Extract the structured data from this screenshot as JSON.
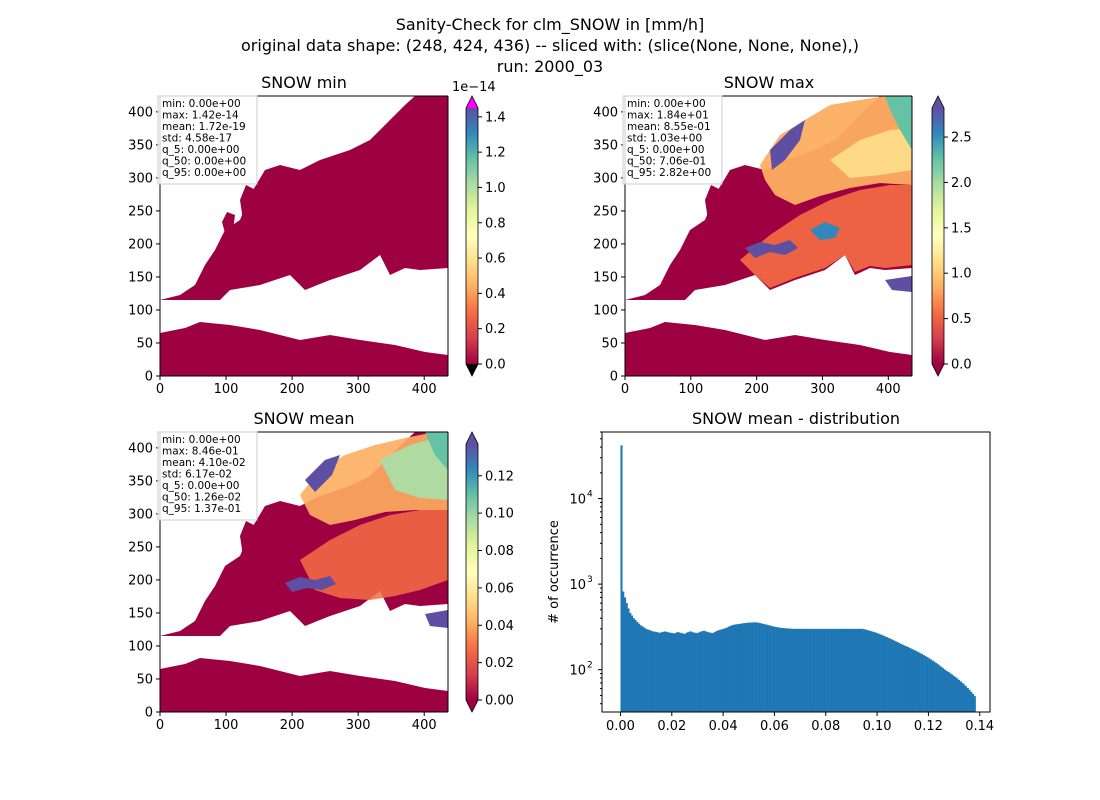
{
  "figure": {
    "title_lines": [
      "Sanity-Check for clm_SNOW in [mm/h]",
      "original data shape: (248, 424, 436) -- sliced with: (slice(None, None, None),)",
      "run: 2000_03"
    ]
  },
  "colors": {
    "map_low": "#9e0142",
    "histogram_bar": "#1f77b4",
    "over_color": "#ff00ff",
    "under_color": "#000000"
  },
  "chart_data": [
    {
      "type": "heatmap",
      "title": "SNOW min",
      "xlim": [
        0,
        436
      ],
      "ylim": [
        0,
        424
      ],
      "xticks": [
        0,
        100,
        200,
        300,
        400
      ],
      "yticks": [
        0,
        50,
        100,
        150,
        200,
        250,
        300,
        350,
        400
      ],
      "colorbar": {
        "cmap": "Spectral",
        "range": [
          0,
          1.45
        ],
        "ticks": [
          "0.0",
          "0.2",
          "0.4",
          "0.6",
          "0.8",
          "1.0",
          "1.2",
          "1.4"
        ],
        "offset_label": "1e−14",
        "extend": "both"
      },
      "stats": [
        "min: 0.00e+00",
        "max: 1.42e-14",
        "mean: 1.72e-19",
        "std: 4.58e-17",
        "q_5: 0.00e+00",
        "q_50: 0.00e+00",
        "q_95: 0.00e+00"
      ]
    },
    {
      "type": "heatmap",
      "title": "SNOW max",
      "xlim": [
        0,
        436
      ],
      "ylim": [
        0,
        424
      ],
      "xticks": [
        0,
        100,
        200,
        300,
        400
      ],
      "yticks": [
        0,
        50,
        100,
        150,
        200,
        250,
        300,
        350,
        400
      ],
      "colorbar": {
        "cmap": "Spectral",
        "range": [
          0,
          2.82
        ],
        "ticks": [
          "0.0",
          "0.5",
          "1.0",
          "1.5",
          "2.0",
          "2.5"
        ],
        "offset_label": "",
        "extend": "both"
      },
      "stats": [
        "min: 0.00e+00",
        "max: 1.84e+01",
        "mean: 8.55e-01",
        "std: 1.03e+00",
        "q_5: 0.00e+00",
        "q_50: 7.06e-01",
        "q_95: 2.82e+00"
      ]
    },
    {
      "type": "heatmap",
      "title": "SNOW mean",
      "xlim": [
        0,
        436
      ],
      "ylim": [
        0,
        424
      ],
      "xticks": [
        0,
        100,
        200,
        300,
        400
      ],
      "yticks": [
        0,
        50,
        100,
        150,
        200,
        250,
        300,
        350,
        400
      ],
      "colorbar": {
        "cmap": "Spectral",
        "range": [
          0,
          0.137
        ],
        "ticks": [
          "0.00",
          "0.02",
          "0.04",
          "0.06",
          "0.08",
          "0.10",
          "0.12"
        ],
        "offset_label": "",
        "extend": "both"
      },
      "stats": [
        "min: 0.00e+00",
        "max: 8.46e-01",
        "mean: 4.10e-02",
        "std: 6.17e-02",
        "q_5: 0.00e+00",
        "q_50: 1.26e-02",
        "q_95: 1.37e-01"
      ]
    },
    {
      "type": "bar",
      "title": "SNOW mean - distribution",
      "xlabel": "",
      "ylabel": "# of occurrence",
      "yscale": "log",
      "xlim": [
        -0.0072,
        0.144
      ],
      "ylim": [
        32,
        60000
      ],
      "xticks": [
        "0.00",
        "0.02",
        "0.04",
        "0.06",
        "0.08",
        "0.10",
        "0.12",
        "0.14"
      ],
      "ytick_labels": [
        "10",
        "10",
        "10"
      ],
      "ytick_exponents": [
        "2",
        "3",
        "4"
      ],
      "bins": {
        "start": 0.0,
        "width": 0.000685,
        "counts": [
          42000,
          820,
          700,
          600,
          520,
          460,
          430,
          400,
          380,
          360,
          345,
          330,
          320,
          310,
          300,
          295,
          290,
          285,
          280,
          278,
          275,
          272,
          270,
          275,
          278,
          280,
          276,
          272,
          270,
          268,
          265,
          270,
          275,
          272,
          268,
          265,
          262,
          270,
          275,
          280,
          278,
          272,
          270,
          268,
          272,
          278,
          282,
          285,
          280,
          276,
          272,
          270,
          268,
          275,
          282,
          288,
          292,
          296,
          300,
          305,
          310,
          318,
          325,
          330,
          335,
          338,
          340,
          342,
          345,
          348,
          350,
          352,
          354,
          355,
          356,
          357,
          358,
          356,
          354,
          350,
          346,
          342,
          338,
          335,
          330,
          326,
          322,
          318,
          315,
          312,
          310,
          308,
          306,
          305,
          304,
          303,
          302,
          301,
          300,
          300,
          300,
          300,
          300,
          300,
          300,
          300,
          300,
          300,
          300,
          300,
          300,
          300,
          300,
          300,
          300,
          300,
          300,
          300,
          300,
          300,
          300,
          300,
          300,
          300,
          300,
          300,
          300,
          300,
          300,
          300,
          300,
          300,
          300,
          300,
          300,
          300,
          300,
          300,
          297,
          294,
          290,
          286,
          282,
          278,
          274,
          270,
          265,
          260,
          255,
          250,
          245,
          240,
          235,
          230,
          225,
          220,
          215,
          210,
          205,
          200,
          196,
          192,
          188,
          184,
          180,
          176,
          172,
          168,
          164,
          160,
          156,
          152,
          148,
          144,
          140,
          136,
          132,
          128,
          124,
          120,
          116,
          112,
          108,
          104,
          100,
          97,
          94,
          91,
          88,
          85,
          82,
          79,
          76,
          73,
          70,
          67,
          64,
          61,
          58,
          55,
          52,
          49
        ]
      }
    }
  ]
}
